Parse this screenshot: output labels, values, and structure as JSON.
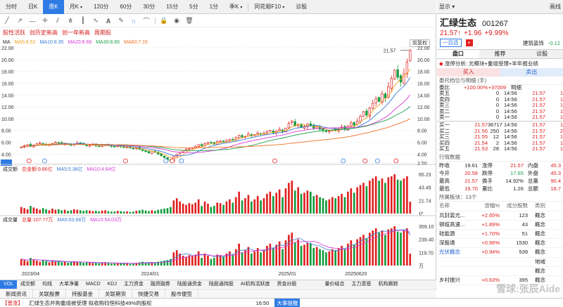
{
  "period_tabs": [
    "分时",
    "日K",
    "周K",
    "月K",
    "120分",
    "60分",
    "30分",
    "15分",
    "5分",
    "1分",
    "季K",
    "同花顺F10",
    "诊股"
  ],
  "active_tab": "周K",
  "top_right": {
    "display": "显示",
    "draw": "画线"
  },
  "tags": [
    "股性活跃",
    "创历史新高",
    "创一年新高",
    "周期股"
  ],
  "ma": {
    "label": "MA",
    "items": [
      {
        "text": "MA5:8.52",
        "color": "#f0a020"
      },
      {
        "text": "MA10:8.35",
        "color": "#3a7bd5"
      },
      {
        "text": "MA20:8.69",
        "color": "#d63ad6"
      },
      {
        "text": "MA30:8.65",
        "color": "#20a050"
      },
      {
        "text": "MA60:7.15",
        "color": "#f07020"
      }
    ],
    "adjust": "前复权"
  },
  "price_axis": [
    "22.00",
    "20.00",
    "18.00",
    "16.00",
    "14.00",
    "12.00",
    "10.00",
    "8.00",
    "6.00",
    "4.00",
    "2.50"
  ],
  "high_label": "21.57",
  "low_label": "2.50",
  "turnover": {
    "label": "成交额",
    "items": [
      {
        "text": "总金额:9.86亿",
        "color": "#e02020"
      },
      {
        "text": "MA5:5.38亿",
        "color": "#3a7bd5"
      },
      {
        "text": "MA10:4.64亿",
        "color": "#d63ad6"
      }
    ],
    "axis": [
      "65.23",
      "43.49",
      "21.74",
      "亿"
    ]
  },
  "volume": {
    "label": "成交量",
    "items": [
      {
        "text": "总量:107.77万",
        "color": "#e02020"
      },
      {
        "text": "MA5:63.68万",
        "color": "#3a7bd5"
      },
      {
        "text": "MA10:54.03万",
        "color": "#d63ad6"
      }
    ],
    "axis": [
      "359.10",
      "239.40",
      "119.70",
      "万"
    ]
  },
  "date_axis": [
    "2023/04",
    "2024/01",
    "2025/01",
    "20250620"
  ],
  "indicator_tabs": [
    "VOL",
    "成交额",
    "均线",
    "大单净量",
    "MACD",
    "KDJ",
    "主力资金",
    "融资融券",
    "陆股通资金",
    "陆股通持股",
    "AI机构活跃度",
    "资金炒股",
    "量价结合",
    "主力意愿",
    "机构跟踪"
  ],
  "info_tabs": [
    "新闻资讯",
    "关联股票",
    "持股基金",
    "关联期货",
    "快捷交易",
    "股市便签"
  ],
  "ticker": {
    "tag": "【普涨】",
    "text": "汇绿生态并购重组被受理 拟收购钧恒科技49%的股权",
    "time": "16:50",
    "link": "大事提醒"
  },
  "stock": {
    "name": "汇绿生态",
    "code": "001267",
    "price": "21.57↑",
    "change": "+1.96",
    "pct": "+9.99%",
    "self_select": "一自选",
    "industry": "建筑装饰",
    "industry_change": "-0.12"
  },
  "panel_tabs": [
    "盘口",
    "推荐",
    "诊股"
  ],
  "rise_reason": "涨停分析: 光模块+重组受理+半年报业绩",
  "buy_label": "买入",
  "sell_label": "卖出",
  "orderbook_title": "委托档位与明细 (手)",
  "webi": {
    "label": "委比",
    "pct": "+100.00%",
    "diff": "+37009",
    "detail_label": "明细"
  },
  "asks": [
    {
      "label": "卖五",
      "price": "",
      "vol": "0"
    },
    {
      "label": "卖四",
      "price": "",
      "vol": "0"
    },
    {
      "label": "卖三",
      "price": "",
      "vol": "0"
    },
    {
      "label": "卖二",
      "price": "",
      "vol": "0"
    },
    {
      "label": "卖一",
      "price": "",
      "vol": "0"
    }
  ],
  "bids": [
    {
      "label": "买一",
      "price": "21.57",
      "vol": "36717"
    },
    {
      "label": "买二",
      "price": "21.56",
      "vol": "250"
    },
    {
      "label": "买三",
      "price": "21.55",
      "vol": "12"
    },
    {
      "label": "买四",
      "price": "21.54",
      "vol": "2"
    },
    {
      "label": "买五",
      "price": "21.53",
      "vol": "28"
    }
  ],
  "ticks": [
    {
      "t": "14:56",
      "p": "21.57",
      "v": "1"
    },
    {
      "t": "14:56",
      "p": "21.57",
      "v": "1"
    },
    {
      "t": "14:56",
      "p": "21.57",
      "v": "1"
    },
    {
      "t": "14:56",
      "p": "21.57",
      "v": "1"
    },
    {
      "t": "14:56",
      "p": "21.57",
      "v": "1"
    },
    {
      "t": "14:56",
      "p": "21.57",
      "v": "1"
    },
    {
      "t": "14:56",
      "p": "21.57",
      "v": "2"
    },
    {
      "t": "14:56",
      "p": "21.57",
      "v": "1"
    },
    {
      "t": "14:56",
      "p": "21.57",
      "v": "1"
    },
    {
      "t": "14:56",
      "p": "21.57",
      "v": "1"
    },
    {
      "t": "14:56",
      "p": "21.57",
      "v": "1"
    },
    {
      "t": "14:56",
      "p": "21.57",
      "v": "1"
    },
    {
      "t": "14:56",
      "p": "21.57",
      "v": "1"
    }
  ],
  "market_title": "行情数据",
  "market": [
    {
      "k1": "昨收",
      "v1": "19.61",
      "k2": "涨停",
      "v2": "21.57",
      "k3": "内盘",
      "v3": "45.3"
    },
    {
      "k1": "今开",
      "v1": "20.58",
      "k2": "跌停",
      "v2": "17.65",
      "k3": "外盘",
      "v3": "45.3"
    },
    {
      "k1": "最高",
      "v1": "21.57",
      "k2": "换手",
      "v2": "14.92%",
      "k3": "总量",
      "v3": "90.4"
    },
    {
      "k1": "最低",
      "v1": "19.70",
      "k2": "量比",
      "v2": "1.26",
      "k3": "总额",
      "v3": "18.7"
    }
  ],
  "sector_title": "所属板块：13个",
  "sector_head": [
    "名称",
    "涨幅%",
    "成分股数",
    "类别"
  ],
  "sectors": [
    {
      "name": "共封装光...",
      "chg": "+2.65%",
      "n": "123",
      "cat": "概念"
    },
    {
      "name": "铜缆高速...",
      "chg": "+1.89%",
      "n": "43",
      "cat": "概念"
    },
    {
      "name": "硅能源",
      "chg": "+1.70%",
      "n": "51",
      "cat": "概念"
    },
    {
      "name": "深股通",
      "chg": "+0.96%",
      "n": "1530",
      "cat": "概念"
    },
    {
      "name": "光伏概念",
      "chg": "+0.94%",
      "n": "539",
      "cat": "概念"
    },
    {
      "name": "",
      "chg": "",
      "n": "",
      "cat": "地域"
    },
    {
      "name": "",
      "chg": "",
      "n": "",
      "cat": "概念"
    },
    {
      "name": "乡村振兴",
      "chg": "+0.63%",
      "n": "395",
      "cat": "概念"
    }
  ],
  "watermark": "雪球:张辰Aide",
  "chart_data": {
    "type": "candlestick",
    "title": "",
    "ylim": [
      2.5,
      22
    ],
    "x_ticks": [
      "2023/04",
      "2024/01",
      "2025/01",
      "20250620"
    ],
    "series": [
      {
        "name": "MA5",
        "color": "#f0a020"
      },
      {
        "name": "MA10",
        "color": "#3a7bd5"
      },
      {
        "name": "MA20",
        "color": "#d63ad6"
      },
      {
        "name": "MA30",
        "color": "#20a050"
      },
      {
        "name": "MA60",
        "color": "#f07020"
      }
    ],
    "close": [
      5.2,
      5.4,
      5.6,
      5.3,
      5.5,
      5.8,
      5.9,
      5.7,
      5.5,
      5.6,
      5.8,
      6.0,
      5.9,
      5.7,
      5.8,
      5.6,
      5.5,
      5.7,
      5.9,
      5.8,
      5.6,
      5.4,
      5.5,
      5.6,
      5.4,
      5.3,
      5.5,
      5.6,
      5.5,
      5.3,
      5.2,
      5.4,
      5.3,
      5.1,
      5.2,
      5.0,
      4.9,
      5.1,
      4.8,
      4.6,
      4.4,
      4.2,
      4.5,
      4.3,
      4.0,
      3.7,
      3.4,
      3.0,
      2.8,
      3.6,
      4.0,
      4.3,
      4.6,
      4.8,
      4.9,
      5.1,
      5.3,
      5.6,
      5.4,
      5.8,
      6.0,
      5.9,
      5.7,
      6.1,
      6.2,
      6.0,
      6.3,
      6.5,
      6.4,
      6.8,
      7.2,
      6.9,
      7.0,
      7.4,
      7.1,
      7.3,
      7.6,
      7.4,
      7.5,
      7.8,
      8.0,
      7.6,
      7.9,
      8.2,
      7.8,
      8.4,
      9.2,
      9.6,
      8.8,
      9.0,
      8.5,
      8.7,
      9.1,
      8.8,
      8.4,
      8.6,
      8.2,
      8.0,
      7.8,
      7.9,
      8.1,
      8.0,
      8.3,
      8.6,
      8.2,
      8.8,
      9.3,
      8.9,
      9.6,
      10.4,
      11.2,
      10.6,
      11.8,
      12.6,
      13.4,
      12.9,
      14.2,
      13.5,
      15.4,
      16.8,
      18.2,
      17.0,
      16.2,
      17.6,
      19.61,
      21.57
    ],
    "volume": [
      60,
      50,
      40,
      70,
      55,
      45,
      35,
      50,
      40,
      30,
      45,
      35,
      40,
      30,
      35,
      25,
      30,
      40,
      35,
      30,
      25,
      30,
      28,
      22,
      25,
      20,
      28,
      30,
      22,
      18,
      20,
      25,
      22,
      18,
      20,
      15,
      18,
      25,
      30,
      35,
      28,
      22,
      30,
      25,
      35,
      40,
      45,
      50,
      60,
      120,
      140,
      110,
      90,
      80,
      95,
      85,
      100,
      130,
      70,
      110,
      90,
      60,
      70,
      100,
      95,
      80,
      110,
      130,
      100,
      150,
      200,
      120,
      140,
      170,
      110,
      130,
      160,
      120,
      140,
      180,
      200,
      160,
      190,
      220,
      150,
      230,
      280,
      300,
      210,
      240,
      180,
      190,
      210,
      200,
      160,
      170,
      150,
      140,
      120,
      130,
      150,
      140,
      160,
      180,
      150,
      200,
      230,
      190,
      240,
      260,
      280,
      250,
      300,
      320,
      340,
      300,
      320,
      280,
      330,
      340,
      359,
      310,
      300,
      320,
      340,
      108
    ]
  }
}
